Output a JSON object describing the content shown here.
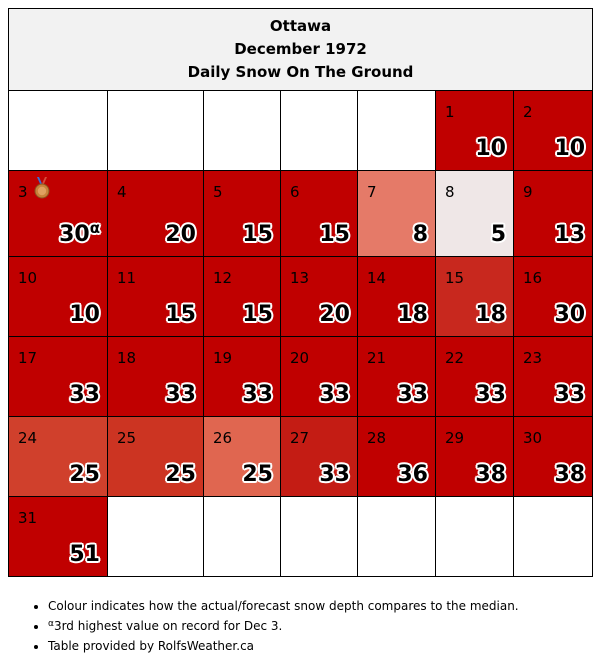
{
  "header": {
    "city": "Ottawa",
    "month_year": "December 1972",
    "subtitle": "Daily Snow On The Ground"
  },
  "colors": {
    "deep_red": "#c00000",
    "red_mid": "#c8281e",
    "red_light": "#e07a62",
    "salmon": "#e57a68",
    "very_light": "#efe7e7",
    "header_bg": "#f2f2f2"
  },
  "days": [
    {
      "day": "1",
      "value": "10",
      "color": "#c00000"
    },
    {
      "day": "2",
      "value": "10",
      "color": "#c00000"
    },
    {
      "day": "3",
      "value": "30",
      "marker": "α",
      "icon": "bronze-medal-icon",
      "color": "#c00000"
    },
    {
      "day": "4",
      "value": "20",
      "color": "#c00000"
    },
    {
      "day": "5",
      "value": "15",
      "color": "#c00000"
    },
    {
      "day": "6",
      "value": "15",
      "color": "#c00000"
    },
    {
      "day": "7",
      "value": "8",
      "color": "#e57a68"
    },
    {
      "day": "8",
      "value": "5",
      "color": "#efe7e7"
    },
    {
      "day": "9",
      "value": "13",
      "color": "#c00000"
    },
    {
      "day": "10",
      "value": "10",
      "color": "#c00000"
    },
    {
      "day": "11",
      "value": "15",
      "color": "#c00000"
    },
    {
      "day": "12",
      "value": "15",
      "color": "#c00000"
    },
    {
      "day": "13",
      "value": "20",
      "color": "#c00000"
    },
    {
      "day": "14",
      "value": "18",
      "color": "#c00000"
    },
    {
      "day": "15",
      "value": "18",
      "color": "#c8281e"
    },
    {
      "day": "16",
      "value": "30",
      "color": "#c00000"
    },
    {
      "day": "17",
      "value": "33",
      "color": "#c00000"
    },
    {
      "day": "18",
      "value": "33",
      "color": "#c00000"
    },
    {
      "day": "19",
      "value": "33",
      "color": "#c00000"
    },
    {
      "day": "20",
      "value": "33",
      "color": "#c00000"
    },
    {
      "day": "21",
      "value": "33",
      "color": "#c00000"
    },
    {
      "day": "22",
      "value": "33",
      "color": "#c00000"
    },
    {
      "day": "23",
      "value": "33",
      "color": "#c00000"
    },
    {
      "day": "24",
      "value": "25",
      "color": "#d0402c"
    },
    {
      "day": "25",
      "value": "25",
      "color": "#cc3422"
    },
    {
      "day": "26",
      "value": "25",
      "color": "#e06650"
    },
    {
      "day": "27",
      "value": "33",
      "color": "#c41c14"
    },
    {
      "day": "28",
      "value": "36",
      "color": "#c00000"
    },
    {
      "day": "29",
      "value": "38",
      "color": "#c00000"
    },
    {
      "day": "30",
      "value": "38",
      "color": "#c00000"
    },
    {
      "day": "31",
      "value": "51",
      "color": "#c00000"
    }
  ],
  "notes": {
    "colour_note": "Colour indicates how the actual/forecast snow depth compares to the median.",
    "record_marker": "α",
    "record_note": "3rd highest value on record for Dec 3.",
    "credit": "Table provided by RolfsWeather.ca"
  }
}
